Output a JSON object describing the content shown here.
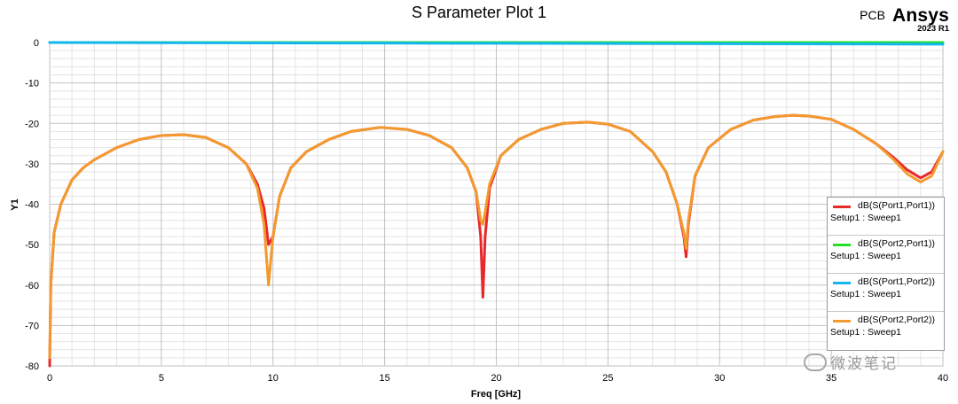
{
  "chart_data": {
    "type": "line",
    "title": "S Parameter Plot 1",
    "xlabel": "Freq [GHz]",
    "ylabel": "Y1",
    "xlim": [
      0,
      40
    ],
    "ylim": [
      -80,
      0
    ],
    "xticks": [
      0,
      5,
      10,
      15,
      20,
      25,
      30,
      35,
      40
    ],
    "yticks": [
      0,
      -10,
      -20,
      -30,
      -40,
      -50,
      -60,
      -70,
      -80
    ],
    "grid": true,
    "legend_position": "right",
    "series": [
      {
        "name": "dB(S(Port1,Port1))",
        "setup": "Setup1 : Sweep1",
        "color": "#e8282b",
        "x": [
          0,
          0.05,
          0.2,
          0.5,
          1,
          1.5,
          2,
          3,
          4,
          5,
          6,
          7,
          8,
          8.8,
          9.3,
          9.6,
          9.8,
          10.0,
          10.3,
          10.8,
          11.5,
          12.5,
          13.5,
          14.8,
          16,
          17,
          18,
          18.7,
          19.1,
          19.3,
          19.4,
          19.5,
          19.7,
          20.2,
          21,
          22,
          23,
          24.1,
          25,
          26,
          27,
          27.6,
          28.1,
          28.4,
          28.5,
          28.6,
          28.9,
          29.5,
          30.5,
          31.5,
          32.5,
          33.3,
          34,
          35,
          36,
          37,
          37.8,
          38.4,
          39,
          39.5,
          40
        ],
        "values": [
          -80,
          -60,
          -47,
          -40,
          -34,
          -31,
          -29,
          -26,
          -24,
          -23,
          -22.8,
          -23.5,
          -26,
          -30,
          -35,
          -41,
          -50,
          -48,
          -38,
          -31,
          -27,
          -24,
          -22,
          -21,
          -21.5,
          -23,
          -26,
          -31,
          -37,
          -48,
          -63,
          -48,
          -36,
          -28,
          -24,
          -21.5,
          -20,
          -19.7,
          -20.2,
          -22,
          -27,
          -32,
          -40,
          -48,
          -53,
          -45,
          -33,
          -26,
          -21.5,
          -19.2,
          -18.3,
          -18,
          -18.2,
          -19,
          -21.5,
          -25,
          -28.5,
          -31.5,
          -33.5,
          -32,
          -27
        ]
      },
      {
        "name": "dB(S(Port2,Port1))",
        "setup": "Setup1 : Sweep1",
        "color": "#22e122",
        "x": [
          0,
          40
        ],
        "values": [
          0,
          0
        ]
      },
      {
        "name": "dB(S(Port1,Port2))",
        "setup": "Setup1 : Sweep1",
        "color": "#13b7ee",
        "x": [
          0,
          5,
          10,
          15,
          20,
          25,
          30,
          35,
          40
        ],
        "values": [
          0,
          -0.05,
          -0.1,
          -0.15,
          -0.2,
          -0.25,
          -0.3,
          -0.35,
          -0.4
        ]
      },
      {
        "name": "dB(S(Port2,Port2))",
        "setup": "Setup1 : Sweep1",
        "color": "#f39a2e",
        "x": [
          0,
          0.05,
          0.2,
          0.5,
          1,
          1.5,
          2,
          3,
          4,
          5,
          6,
          7,
          8,
          8.8,
          9.3,
          9.6,
          9.8,
          10.0,
          10.3,
          10.8,
          11.5,
          12.5,
          13.5,
          14.8,
          16,
          17,
          18,
          18.7,
          19.1,
          19.3,
          19.4,
          19.5,
          19.7,
          20.2,
          21,
          22,
          23,
          24.1,
          25,
          26,
          27,
          27.6,
          28.1,
          28.4,
          28.5,
          28.6,
          28.9,
          29.5,
          30.5,
          31.5,
          32.5,
          33.3,
          34,
          35,
          36,
          37,
          37.8,
          38.4,
          39,
          39.5,
          40
        ],
        "values": [
          -78,
          -60,
          -47,
          -40,
          -34,
          -31,
          -29,
          -26,
          -24,
          -23,
          -22.8,
          -23.5,
          -26,
          -30,
          -36,
          -45,
          -60,
          -48,
          -38,
          -31,
          -27,
          -24,
          -22,
          -21,
          -21.5,
          -23,
          -26,
          -31,
          -37,
          -44,
          -45,
          -42,
          -35,
          -28,
          -24,
          -21.5,
          -20,
          -19.7,
          -20.2,
          -22,
          -27,
          -32,
          -40,
          -47,
          -51,
          -44,
          -33,
          -26,
          -21.5,
          -19.2,
          -18.3,
          -18,
          -18.2,
          -19,
          -21.5,
          -25,
          -29,
          -32.5,
          -34.5,
          -33,
          -27
        ]
      }
    ]
  },
  "brand": {
    "product": "PCB",
    "company": "Ansys",
    "version": "2023 R1"
  },
  "watermark": "微波笔记"
}
